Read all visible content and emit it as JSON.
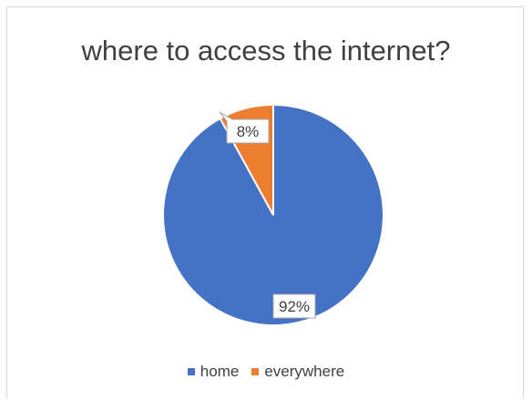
{
  "chart_data": {
    "type": "pie",
    "title": "where to access the internet?",
    "categories": [
      "home",
      "everywhere"
    ],
    "values": [
      92,
      8
    ],
    "data_labels": [
      "92%",
      "8%"
    ],
    "colors": [
      "#4472c4",
      "#ed7d31"
    ],
    "legend_position": "bottom"
  }
}
